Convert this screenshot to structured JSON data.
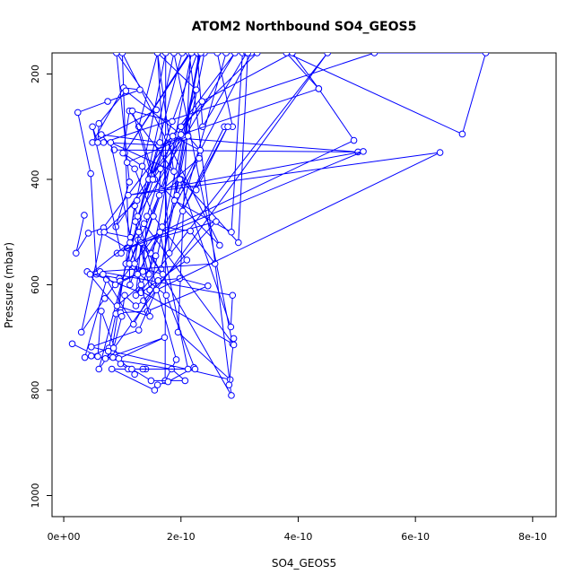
{
  "chart_data": {
    "type": "line",
    "title": "ATOM2 Northbound SO4_GEOS5",
    "xlabel": "SO4_GEOS5",
    "ylabel": "Pressure (mbar)",
    "xlim": [
      -2e-11,
      8.4e-10
    ],
    "ylim": [
      1040,
      160
    ],
    "y_axis_inverted": true,
    "grid": false,
    "x_ticks": [
      {
        "value": 0,
        "label": "0e+00"
      },
      {
        "value": 2e-10,
        "label": "2e-10"
      },
      {
        "value": 4e-10,
        "label": "4e-10"
      },
      {
        "value": 6e-10,
        "label": "6e-10"
      },
      {
        "value": 8e-10,
        "label": "8e-10"
      }
    ],
    "y_ticks": [
      {
        "value": 200,
        "label": "200"
      },
      {
        "value": 400,
        "label": "400"
      },
      {
        "value": 600,
        "label": "600"
      },
      {
        "value": 800,
        "label": "800"
      },
      {
        "value": 1000,
        "label": "1000"
      }
    ],
    "series": [
      {
        "color": "#0000ff",
        "marker": "open-circle",
        "x": [
          3.5e-11,
          2.1e-11,
          4.2e-11,
          6.8e-11,
          3e-11,
          7e-11,
          9.5e-11,
          5.6e-11,
          4.6e-11,
          2.4e-11,
          7.5e-11,
          1.3e-10,
          1.02e-10,
          4.9e-11,
          1.58e-10,
          9e-11,
          1.12e-10,
          8.9e-11,
          2.36e-10,
          3.9e-10,
          4.35e-10,
          3.8e-10,
          6.8e-10,
          7.2e-10,
          5.3e-10,
          6.8e-11,
          1.62e-10,
          2.05e-10,
          1.49e-10,
          1.77e-10,
          5.02e-10,
          8.6e-11,
          6.4e-11,
          1.64e-10,
          1.27e-10,
          1.88e-10,
          2.88e-10,
          1.32e-10,
          4.5e-10,
          6e-11,
          1.45e-10,
          2.02e-10,
          2.28e-10,
          1.26e-10,
          2.92e-10,
          6.2e-11,
          1.08e-10,
          1.74e-10,
          1.73e-10,
          1.92e-10,
          1.21e-10,
          8.2e-11,
          2.84e-10,
          1.95e-10,
          2.16e-10,
          1.04e-10,
          2.14e-10,
          2.86e-10,
          1.37e-10,
          2.26e-10,
          1.6e-10,
          1.28e-10,
          1.55e-10,
          2.66e-10,
          1e-10,
          1.13e-10,
          2e-10,
          3.3e-10,
          3.05e-10,
          2.86e-10,
          1.89e-10,
          2.32e-10,
          2.31e-10,
          1.66e-10,
          2.4e-10,
          2.77e-10,
          1.8e-10,
          1.6e-10,
          1.93e-10,
          3.2e-10,
          3.12e-10,
          2.37e-10,
          2.28e-10,
          2.62e-10,
          2.88e-10,
          2.74e-10,
          2.03e-10,
          2.8e-10,
          2.26e-10,
          2e-10,
          2.98e-10,
          3.14e-10,
          2.18e-10,
          1.45e-10,
          1.22e-10,
          1.47e-10,
          2.34e-10
        ],
        "y": [
          468,
          540,
          502,
          492,
          690,
          626,
          588,
          580,
          389,
          273,
          252,
          230,
          226,
          330,
          268,
          160,
          405,
          490,
          252,
          160,
          228,
          160,
          314,
          160,
          160,
          330,
          335,
          320,
          393,
          320,
          348,
          344,
          315,
          330,
          475,
          160,
          712,
          612,
          160,
          760,
          400,
          160,
          160,
          470,
          160,
          500,
          530,
          160,
          782,
          742,
          450,
          726,
          780,
          690,
          160,
          350,
          160,
          810,
          520,
          230,
          160,
          300,
          400,
          525,
          160,
          600,
          300,
          160,
          160,
          500,
          440,
          160,
          160,
          570,
          160,
          160,
          540,
          160,
          430,
          160,
          160,
          300,
          160,
          160,
          300,
          300,
          460,
          300,
          420,
          400,
          520,
          160,
          160,
          580,
          480,
          610,
          160
        ]
      },
      {
        "color": "#0000ff",
        "marker": "open-circle",
        "x": [
          1.45e-11,
          5.8e-11,
          6.4e-11,
          9.7e-11,
          1.1e-10,
          1.4e-10,
          1.35e-10,
          8.2e-11,
          1.55e-10,
          1.6e-10,
          1.78e-10,
          2.22e-10,
          2.24e-10,
          1.75e-10,
          1.06e-10,
          8.9e-11,
          7.7e-11,
          4.7e-11,
          1.84e-10,
          2.07e-10,
          1.49e-10,
          8.4e-11,
          3.6e-11,
          7.3e-11,
          1.19e-10,
          1.61e-10,
          1.98e-10,
          2.46e-10,
          1.43e-10,
          9.7e-11,
          4e-11,
          1.32e-10,
          2.1e-10,
          1.53e-10,
          1.21e-10,
          1.08e-10,
          2.12e-10,
          2.33e-10,
          1.86e-10,
          1.42e-10,
          1.35e-10,
          9.6e-11,
          1.68e-10,
          2.16e-10,
          2.58e-10,
          6.2e-11,
          2.88e-10,
          2.85e-10,
          1.98e-10,
          1.63e-10,
          1.65e-10,
          1.25e-10,
          6.9e-11,
          1.14e-10,
          8e-11,
          1.88e-10,
          1.12e-10,
          1.01e-10,
          1.34e-10,
          1.52e-10,
          1.17e-10,
          1.85e-10,
          1.06e-10,
          1.69e-10,
          1.27e-10,
          1.12e-10,
          1.67e-10,
          2.31e-10,
          1.48e-10,
          1.57e-10,
          1.23e-10,
          1.32e-10,
          2.6e-10,
          1.36e-10,
          1.23e-10,
          1.04e-10,
          9.9e-11,
          8.5e-11,
          7.1e-11,
          1.72e-10,
          9.4e-11,
          1.21e-10
        ],
        "y": [
          712,
          736,
          650,
          750,
          760,
          760,
          760,
          760,
          800,
          790,
          784,
          757,
          760,
          620,
          560,
          655,
          720,
          735,
          760,
          782,
          782,
          738,
          738,
          590,
          675,
          592,
          588,
          602,
          650,
          653,
          575,
          615,
          553,
          470,
          380,
          368,
          318,
          345,
          318,
          470,
          575,
          593,
          490,
          498,
          560,
          575,
          620,
          680,
          400,
          430,
          380,
          440,
          500,
          510,
          330,
          385,
          270,
          350,
          375,
          400,
          270,
          290,
          560,
          580,
          515,
          560,
          420,
          360,
          540,
          545,
          620,
          520,
          480,
          630,
          640,
          620,
          660,
          720,
          740,
          700,
          740,
          770
        ]
      },
      {
        "color": "#0000ff",
        "marker": "open-circle",
        "x": [
          7.6e-11,
          4.7e-11,
          1.28e-10,
          1.58e-10,
          6.42e-10,
          1.1e-10,
          5.11e-10,
          9.1e-11,
          4.95e-10,
          4.35e-10,
          2e-10,
          1.06e-10,
          6e-11,
          5.8e-11,
          4.9e-11,
          9.8e-11,
          1.37e-10,
          2.9e-10,
          2.9e-10,
          2.82e-10
        ],
        "y": [
          726,
          718,
          686,
          610,
          349,
          430,
          347,
          540,
          326,
          228,
          315,
          232,
          294,
          330,
          300,
          540,
          484,
          714,
          702,
          790
        ]
      },
      {
        "color": "#0000ff",
        "marker": "open-circle",
        "x": [
          1.16e-10,
          2.12e-10,
          1.64e-10,
          1.26e-10,
          8.8e-11,
          6.7e-11,
          4.5e-11,
          1.13e-10,
          1.32e-10,
          9.1e-11,
          1.47e-10,
          1.21e-10,
          1.28e-10
        ],
        "y": [
          760,
          760,
          500,
          580,
          600,
          580,
          580,
          520,
          600,
          640,
          660,
          560,
          500
        ]
      }
    ]
  }
}
